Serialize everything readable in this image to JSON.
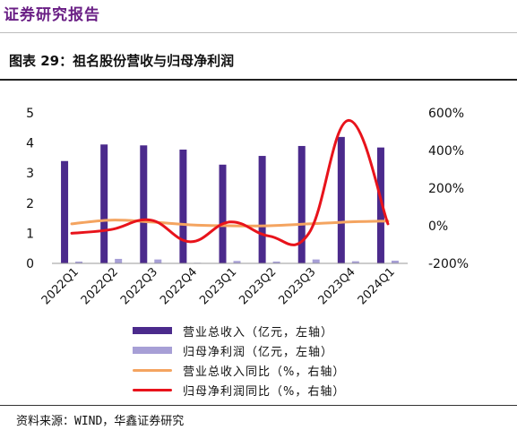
{
  "header": {
    "title": "证券研究报告"
  },
  "figure": {
    "title": "图表 29：祖名股份营收与归母净利润"
  },
  "source": "资料来源：WIND，华鑫证券研究",
  "chart_data": {
    "type": "bar",
    "categories": [
      "2022Q1",
      "2022Q2",
      "2022Q3",
      "2022Q4",
      "2023Q1",
      "2023Q2",
      "2023Q3",
      "2023Q4",
      "2024Q1"
    ],
    "left_axis": {
      "ylim": [
        0,
        5
      ],
      "ticks": [
        "0",
        "1",
        "2",
        "3",
        "4",
        "5"
      ]
    },
    "right_axis": {
      "ylim": [
        -200,
        600
      ],
      "ticks": [
        "-200%",
        "0%",
        "200%",
        "400%",
        "600%"
      ]
    },
    "grid": false,
    "legend_position": "bottom",
    "series": [
      {
        "name": "营业总收入（亿元，左轴）",
        "kind": "bar",
        "axis": "left",
        "color": "#4b2a8c",
        "values": [
          3.4,
          3.95,
          3.92,
          3.78,
          3.28,
          3.57,
          3.9,
          4.2,
          3.85
        ]
      },
      {
        "name": "归母净利润（亿元，左轴）",
        "kind": "bar",
        "axis": "left",
        "color": "#a79fd6",
        "values": [
          0.06,
          0.15,
          0.13,
          0.02,
          0.08,
          0.06,
          0.13,
          0.07,
          0.09
        ]
      },
      {
        "name": "营业总收入同比（%，右轴）",
        "kind": "line",
        "axis": "right",
        "color": "#f4a460",
        "values": [
          10,
          30,
          20,
          5,
          0,
          0,
          10,
          20,
          25
        ]
      },
      {
        "name": "归母净利润同比（%，右轴）",
        "kind": "line",
        "axis": "right",
        "color": "#e8131b",
        "values": [
          -40,
          -20,
          30,
          -85,
          20,
          -55,
          -40,
          560,
          10
        ]
      }
    ]
  }
}
